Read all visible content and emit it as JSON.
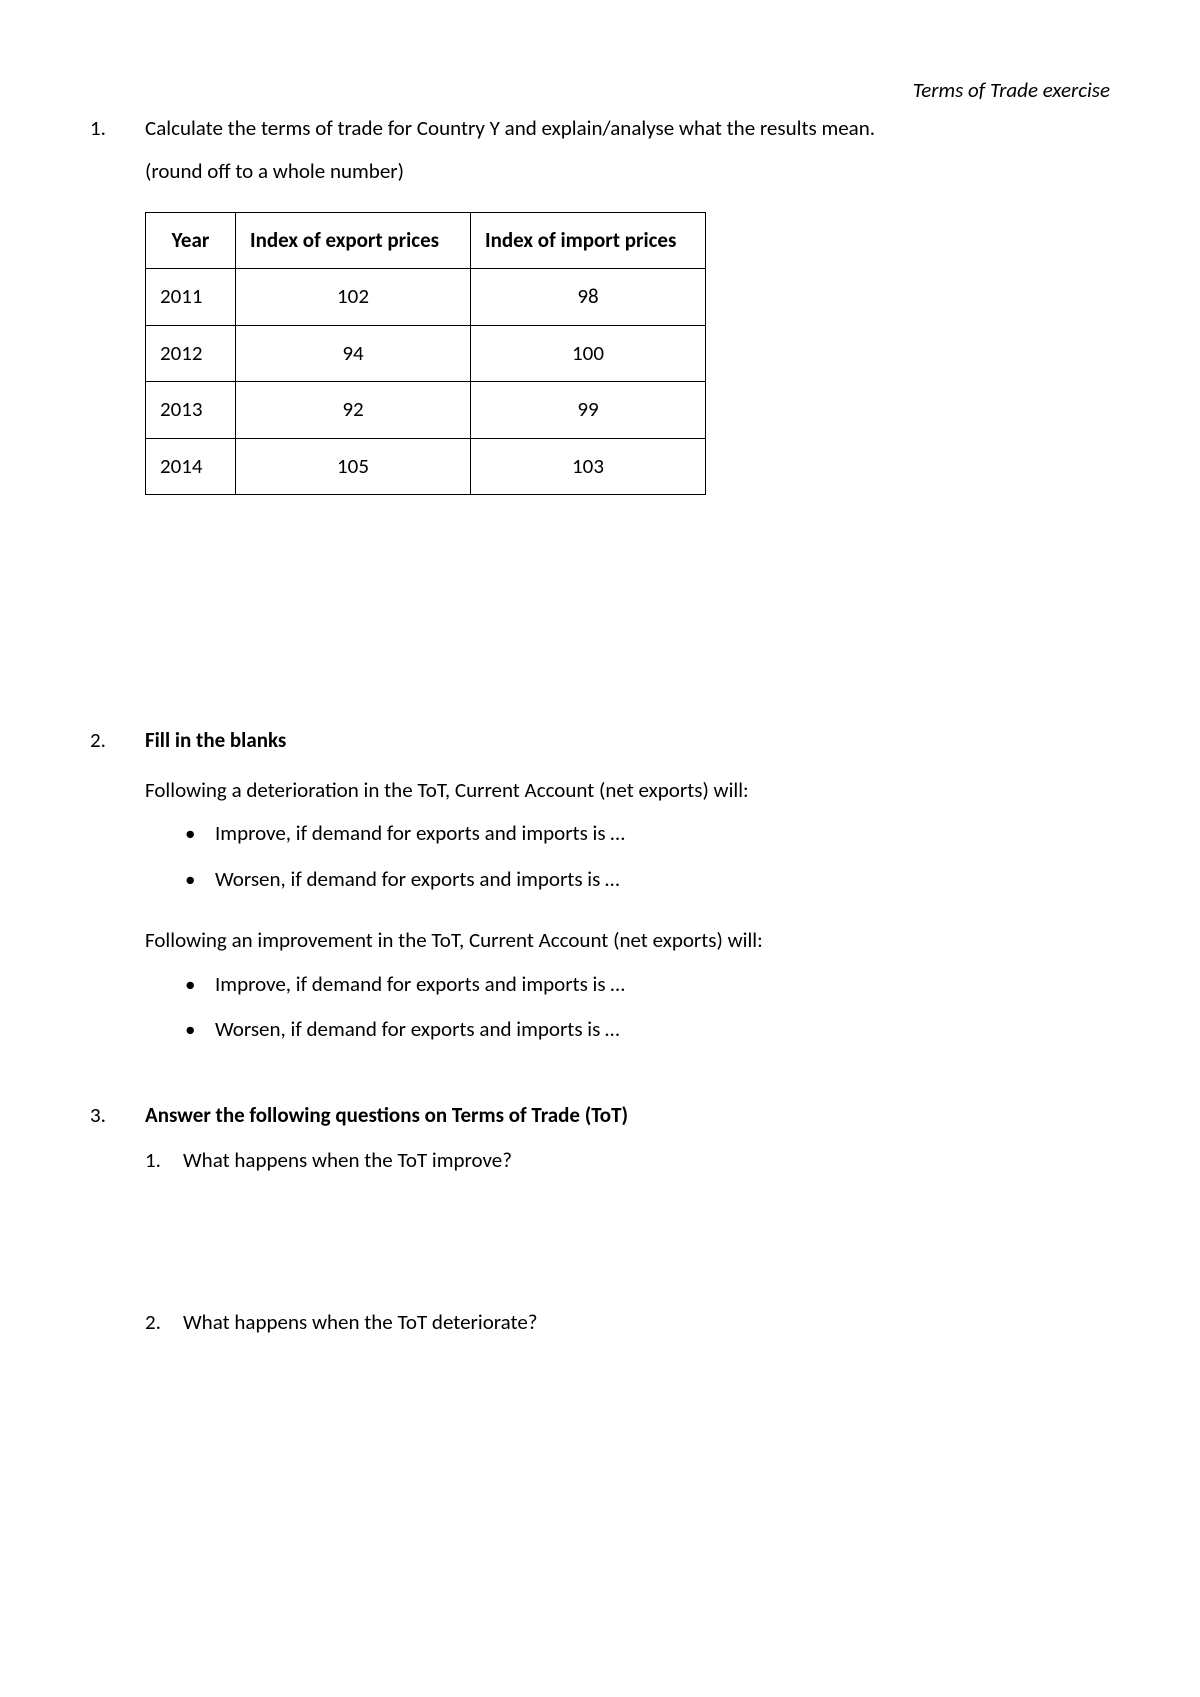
{
  "header": {
    "title": "Terms of Trade exercise"
  },
  "q1": {
    "number": "1.",
    "text": "Calculate the terms of trade for Country Y and explain/analyse what the results mean.",
    "subtext": "(round off to a whole number)",
    "table": {
      "columns": [
        "Year",
        "Index of export prices",
        "Index of import prices"
      ],
      "rows": [
        [
          "2011",
          "102",
          "98"
        ],
        [
          "2012",
          "94",
          "100"
        ],
        [
          "2013",
          "92",
          "99"
        ],
        [
          "2014",
          "105",
          "103"
        ]
      ]
    }
  },
  "q2": {
    "number": "2.",
    "heading": "Fill in the blanks",
    "para1": "Following a deterioration in the ToT, Current Account (net exports) will:",
    "bullets1": [
      "Improve, if demand for exports and imports is …",
      "Worsen, if demand for exports and imports is …"
    ],
    "para2": "Following an improvement in the ToT, Current Account (net exports) will:",
    "bullets2": [
      "Improve, if demand for exports and imports is …",
      "Worsen, if demand for exports and imports is …"
    ]
  },
  "q3": {
    "number": "3.",
    "heading": "Answer the following questions on Terms of Trade (ToT)",
    "subquestions": [
      {
        "num": "1.",
        "text": "What happens when the ToT improve?"
      },
      {
        "num": "2.",
        "text": "What happens when the ToT deteriorate?"
      }
    ]
  }
}
